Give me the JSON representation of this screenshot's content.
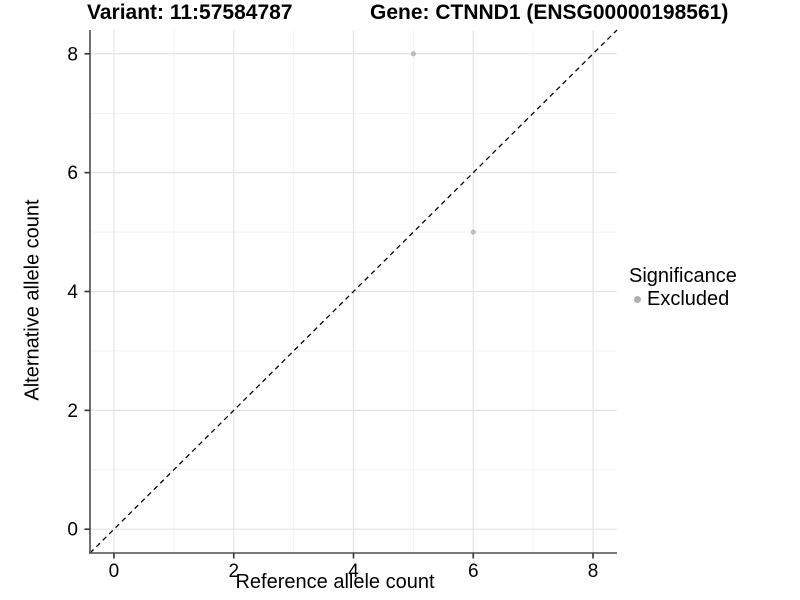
{
  "titles": {
    "variant": "Variant: 11:57584787",
    "gene": "Gene: CTNND1 (ENSG00000198561)"
  },
  "legend": {
    "title": "Significance",
    "position": "right",
    "entries": [
      {
        "label": "Excluded",
        "color": "#b0b0b0"
      }
    ]
  },
  "chart_data": {
    "type": "scatter",
    "title": "Variant: 11:57584787    Gene: CTNND1 (ENSG00000198561)",
    "xlabel": "Reference allele count",
    "ylabel": "Alternative allele count",
    "xlim": [
      -0.4,
      8.4
    ],
    "ylim": [
      -0.4,
      8.4
    ],
    "xticks": [
      0,
      2,
      4,
      6,
      8
    ],
    "yticks": [
      0,
      2,
      4,
      6,
      8
    ],
    "xminor": [
      1,
      3,
      5,
      7
    ],
    "yminor": [
      1,
      3,
      5,
      7
    ],
    "grid": "on",
    "legend_position": "right",
    "reference_line": {
      "type": "identity",
      "equation": "y = x",
      "style": "dashed",
      "color": "#000000"
    },
    "series": [
      {
        "name": "Excluded",
        "color": "#bdbdbd",
        "points": [
          [
            5,
            8
          ],
          [
            6,
            5
          ]
        ]
      }
    ]
  },
  "style_colors": {
    "grid_major": "#e4e4e4",
    "grid_minor": "#f2f2f2",
    "axis_line": "#4d4d4d",
    "tick_mark": "#333333",
    "background": "#ffffff"
  }
}
